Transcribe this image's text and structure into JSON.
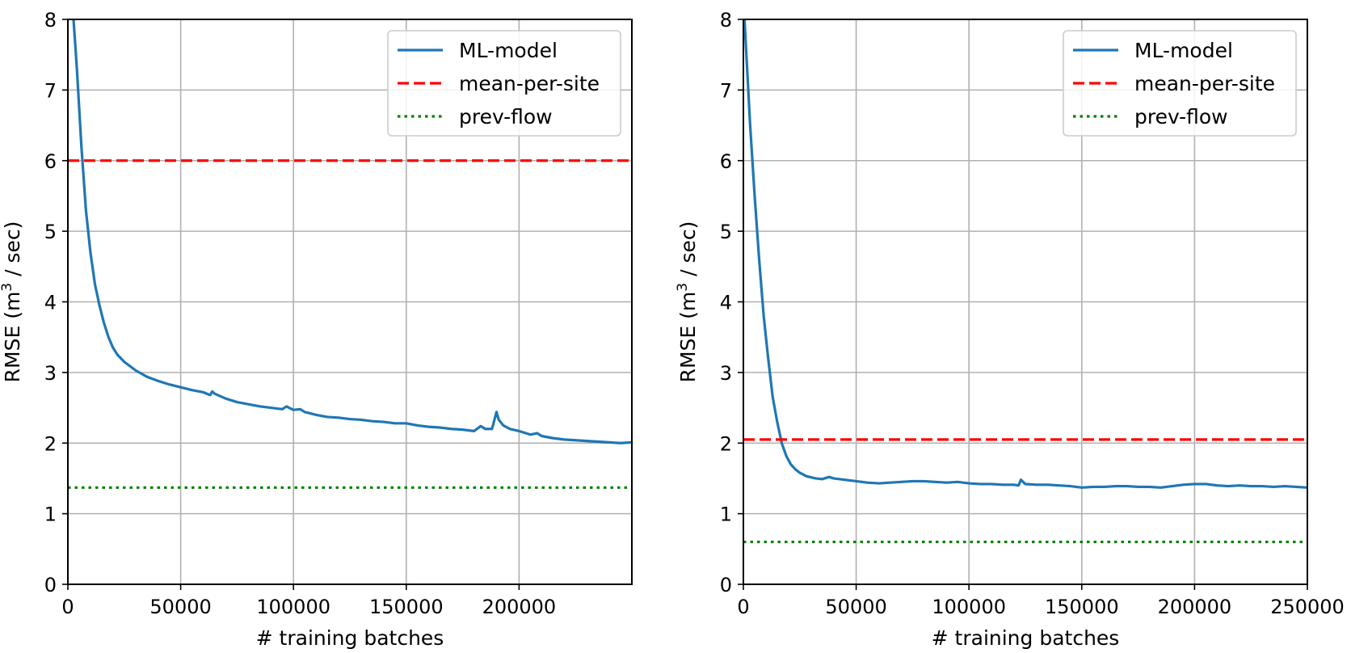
{
  "colors": {
    "ml_model": "#1f77b4",
    "mean_per_site": "#ff0000",
    "prev_flow": "#008000",
    "grid": "#b0b0b0",
    "legend_border": "#cccccc"
  },
  "chart_data": [
    {
      "type": "line",
      "title": "",
      "xlabel": "# training batches",
      "ylabel_prefix": "RMSE (m",
      "ylabel_sup": "3",
      "ylabel_suffix": " / sec)",
      "xlim": [
        0,
        250000
      ],
      "ylim": [
        0,
        8
      ],
      "xticks": [
        0,
        50000,
        100000,
        150000,
        200000
      ],
      "xtick_labels": [
        "0",
        "50000",
        "100000",
        "150000",
        "200000"
      ],
      "yticks": [
        0,
        1,
        2,
        3,
        4,
        5,
        6,
        7,
        8
      ],
      "ytick_labels": [
        "0",
        "1",
        "2",
        "3",
        "4",
        "5",
        "6",
        "7",
        "8"
      ],
      "grid": true,
      "legend_position": "top-right",
      "series": [
        {
          "name": "ML-model",
          "style": "solid",
          "x": [
            2500,
            4000,
            6000,
            8000,
            10000,
            12000,
            14000,
            16000,
            18000,
            20000,
            22000,
            25000,
            30000,
            35000,
            40000,
            45000,
            50000,
            55000,
            60000,
            63000,
            64000,
            65000,
            70000,
            75000,
            80000,
            85000,
            90000,
            95000,
            97000,
            98000,
            100000,
            103000,
            105000,
            110000,
            115000,
            120000,
            125000,
            130000,
            135000,
            140000,
            145000,
            150000,
            155000,
            160000,
            165000,
            170000,
            175000,
            180000,
            183000,
            185000,
            188000,
            190000,
            191000,
            193000,
            196000,
            200000,
            205000,
            208000,
            210000,
            215000,
            220000,
            225000,
            230000,
            235000,
            240000,
            245000,
            250000
          ],
          "values": [
            8.0,
            7.3,
            6.2,
            5.3,
            4.7,
            4.25,
            3.95,
            3.7,
            3.5,
            3.35,
            3.25,
            3.15,
            3.03,
            2.94,
            2.88,
            2.83,
            2.79,
            2.75,
            2.72,
            2.68,
            2.73,
            2.7,
            2.63,
            2.58,
            2.55,
            2.52,
            2.5,
            2.48,
            2.52,
            2.5,
            2.47,
            2.48,
            2.44,
            2.4,
            2.37,
            2.36,
            2.34,
            2.33,
            2.31,
            2.3,
            2.28,
            2.28,
            2.25,
            2.23,
            2.22,
            2.2,
            2.19,
            2.17,
            2.24,
            2.2,
            2.2,
            2.44,
            2.33,
            2.25,
            2.2,
            2.17,
            2.12,
            2.14,
            2.1,
            2.07,
            2.05,
            2.04,
            2.03,
            2.02,
            2.01,
            2.0,
            2.01
          ]
        },
        {
          "name": "mean-per-site",
          "style": "dashed",
          "x": [
            0,
            250000
          ],
          "values": [
            6.0,
            6.0
          ]
        },
        {
          "name": "prev-flow",
          "style": "dotted",
          "x": [
            0,
            250000
          ],
          "values": [
            1.37,
            1.37
          ]
        }
      ]
    },
    {
      "type": "line",
      "title": "",
      "xlabel": "# training batches",
      "ylabel_prefix": "RMSE (m",
      "ylabel_sup": "3",
      "ylabel_suffix": " / sec)",
      "xlim": [
        0,
        250000
      ],
      "ylim": [
        0,
        8
      ],
      "xticks": [
        0,
        50000,
        100000,
        150000,
        200000,
        250000
      ],
      "xtick_labels": [
        "0",
        "50000",
        "100000",
        "150000",
        "200000",
        "250000"
      ],
      "yticks": [
        0,
        1,
        2,
        3,
        4,
        5,
        6,
        7,
        8
      ],
      "ytick_labels": [
        "0",
        "1",
        "2",
        "3",
        "4",
        "5",
        "6",
        "7",
        "8"
      ],
      "grid": true,
      "legend_position": "top-right",
      "series": [
        {
          "name": "ML-model",
          "style": "solid",
          "x": [
            500,
            1500,
            3000,
            5000,
            7000,
            9000,
            11000,
            13000,
            15000,
            17000,
            19000,
            21000,
            23000,
            25000,
            28000,
            32000,
            35000,
            38000,
            40000,
            45000,
            50000,
            55000,
            60000,
            65000,
            70000,
            75000,
            80000,
            85000,
            90000,
            95000,
            100000,
            105000,
            110000,
            115000,
            120000,
            122000,
            123000,
            125000,
            130000,
            135000,
            140000,
            145000,
            150000,
            155000,
            160000,
            165000,
            170000,
            175000,
            180000,
            185000,
            190000,
            195000,
            200000,
            205000,
            210000,
            215000,
            220000,
            225000,
            230000,
            235000,
            240000,
            245000,
            250000
          ],
          "values": [
            8.0,
            7.4,
            6.5,
            5.5,
            4.6,
            3.8,
            3.2,
            2.65,
            2.3,
            2.0,
            1.82,
            1.7,
            1.63,
            1.58,
            1.53,
            1.5,
            1.49,
            1.52,
            1.5,
            1.48,
            1.46,
            1.44,
            1.43,
            1.44,
            1.45,
            1.46,
            1.46,
            1.45,
            1.44,
            1.45,
            1.43,
            1.42,
            1.42,
            1.41,
            1.41,
            1.4,
            1.48,
            1.42,
            1.41,
            1.41,
            1.4,
            1.39,
            1.37,
            1.38,
            1.38,
            1.39,
            1.39,
            1.38,
            1.38,
            1.37,
            1.39,
            1.41,
            1.42,
            1.42,
            1.4,
            1.39,
            1.4,
            1.39,
            1.39,
            1.38,
            1.39,
            1.38,
            1.37
          ]
        },
        {
          "name": "mean-per-site",
          "style": "dashed",
          "x": [
            0,
            250000
          ],
          "values": [
            2.05,
            2.05
          ]
        },
        {
          "name": "prev-flow",
          "style": "dotted",
          "x": [
            0,
            250000
          ],
          "values": [
            0.6,
            0.6
          ]
        }
      ]
    }
  ]
}
